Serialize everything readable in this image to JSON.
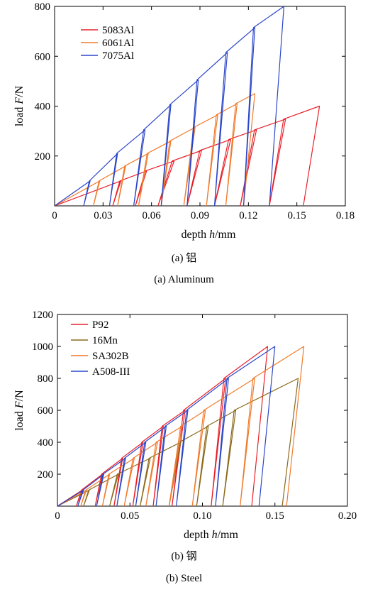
{
  "chart_data": [
    {
      "type": "line",
      "caption_cn": "(a) 铝",
      "caption_en": "(a) Aluminum",
      "xlabel_prefix": "depth ",
      "xlabel_var": "h",
      "xlabel_suffix": "/mm",
      "ylabel_prefix": "load ",
      "ylabel_var": "F",
      "ylabel_suffix": "/N",
      "xlim": [
        0,
        0.18
      ],
      "ylim": [
        0,
        800
      ],
      "xticks": [
        0,
        0.03,
        0.06,
        0.09,
        0.12,
        0.15,
        0.18
      ],
      "xticklabels": [
        "0",
        "0.03",
        "0.06",
        "0.09",
        "0.12",
        "0.15",
        "0.18"
      ],
      "yticks": [
        200,
        400,
        600,
        800
      ],
      "yticklabels": [
        "200",
        "400",
        "600",
        "800"
      ],
      "legend_position": "top-left",
      "series": [
        {
          "name": "5083Al",
          "color": "#e8202a",
          "loading_slope": 2440,
          "cycles": [
            {
              "peak_x": 0.041,
              "peak_y": 100,
              "end_x": 0.036
            },
            {
              "peak_x": 0.057,
              "peak_y": 140,
              "end_x": 0.05
            },
            {
              "peak_x": 0.074,
              "peak_y": 180,
              "end_x": 0.064
            },
            {
              "peak_x": 0.091,
              "peak_y": 222,
              "end_x": 0.082
            },
            {
              "peak_x": 0.109,
              "peak_y": 266,
              "end_x": 0.099
            },
            {
              "peak_x": 0.125,
              "peak_y": 305,
              "end_x": 0.115
            },
            {
              "peak_x": 0.143,
              "peak_y": 348,
              "end_x": 0.133
            },
            {
              "peak_x": 0.164,
              "peak_y": 400,
              "end_x": 0.154
            }
          ]
        },
        {
          "name": "6061Al",
          "color": "#f07b2c",
          "loading_slope": 3630,
          "cycles": [
            {
              "peak_x": 0.028,
              "peak_y": 100,
              "end_x": 0.024
            },
            {
              "peak_x": 0.044,
              "peak_y": 160,
              "end_x": 0.039
            },
            {
              "peak_x": 0.058,
              "peak_y": 210,
              "end_x": 0.052
            },
            {
              "peak_x": 0.072,
              "peak_y": 260,
              "end_x": 0.066
            },
            {
              "peak_x": 0.087,
              "peak_y": 315,
              "end_x": 0.08
            },
            {
              "peak_x": 0.101,
              "peak_y": 365,
              "end_x": 0.094
            },
            {
              "peak_x": 0.113,
              "peak_y": 410,
              "end_x": 0.106
            },
            {
              "peak_x": 0.124,
              "peak_y": 450,
              "end_x": 0.117
            }
          ]
        },
        {
          "name": "7075Al",
          "color": "#2b46c8",
          "loading_slope": 5640,
          "cycles": [
            {
              "peak_x": 0.022,
              "peak_y": 100,
              "end_x": 0.018
            },
            {
              "peak_x": 0.039,
              "peak_y": 210,
              "end_x": 0.034
            },
            {
              "peak_x": 0.056,
              "peak_y": 305,
              "end_x": 0.049
            },
            {
              "peak_x": 0.072,
              "peak_y": 405,
              "end_x": 0.066
            },
            {
              "peak_x": 0.089,
              "peak_y": 505,
              "end_x": 0.082
            },
            {
              "peak_x": 0.107,
              "peak_y": 615,
              "end_x": 0.099
            },
            {
              "peak_x": 0.124,
              "peak_y": 715,
              "end_x": 0.117
            },
            {
              "peak_x": 0.142,
              "peak_y": 800,
              "end_x": 0.133
            }
          ]
        }
      ]
    },
    {
      "type": "line",
      "caption_cn": "(b) 钢",
      "caption_en": "(b) Steel",
      "xlabel_prefix": "depth ",
      "xlabel_var": "h",
      "xlabel_suffix": "/mm",
      "ylabel_prefix": "load ",
      "ylabel_var": "F",
      "ylabel_suffix": "/N",
      "xlim": [
        0,
        0.2
      ],
      "ylim": [
        0,
        1200
      ],
      "xticks": [
        0,
        0.05,
        0.1,
        0.15,
        0.2
      ],
      "xticklabels": [
        "0",
        "0.05",
        "0.10",
        "0.15",
        "0.20"
      ],
      "yticks": [
        200,
        400,
        600,
        800,
        1000,
        1200
      ],
      "yticklabels": [
        "200",
        "400",
        "600",
        "800",
        "1000",
        "1200"
      ],
      "legend_position": "top-left",
      "series": [
        {
          "name": "P92",
          "color": "#e8202a",
          "loading_slope": 6900,
          "cycles": [
            {
              "peak_x": 0.017,
              "peak_y": 100,
              "end_x": 0.013
            },
            {
              "peak_x": 0.031,
              "peak_y": 200,
              "end_x": 0.026
            },
            {
              "peak_x": 0.045,
              "peak_y": 300,
              "end_x": 0.039
            },
            {
              "peak_x": 0.059,
              "peak_y": 400,
              "end_x": 0.052
            },
            {
              "peak_x": 0.073,
              "peak_y": 500,
              "end_x": 0.066
            },
            {
              "peak_x": 0.088,
              "peak_y": 600,
              "end_x": 0.079
            },
            {
              "peak_x": 0.116,
              "peak_y": 800,
              "end_x": 0.106
            },
            {
              "peak_x": 0.145,
              "peak_y": 1000,
              "end_x": 0.134
            }
          ]
        },
        {
          "name": "16Mn",
          "color": "#8b6a1a",
          "loading_slope": 4800,
          "cycles": [
            {
              "peak_x": 0.022,
              "peak_y": 100,
              "end_x": 0.018
            },
            {
              "peak_x": 0.042,
              "peak_y": 200,
              "end_x": 0.036
            },
            {
              "peak_x": 0.064,
              "peak_y": 300,
              "end_x": 0.057
            },
            {
              "peak_x": 0.085,
              "peak_y": 400,
              "end_x": 0.077
            },
            {
              "peak_x": 0.104,
              "peak_y": 500,
              "end_x": 0.096
            },
            {
              "peak_x": 0.123,
              "peak_y": 600,
              "end_x": 0.114
            },
            {
              "peak_x": 0.166,
              "peak_y": 800,
              "end_x": 0.155
            }
          ]
        },
        {
          "name": "SA302B",
          "color": "#f07b2c",
          "loading_slope": 5900,
          "cycles": [
            {
              "peak_x": 0.02,
              "peak_y": 100,
              "end_x": 0.016
            },
            {
              "peak_x": 0.036,
              "peak_y": 200,
              "end_x": 0.031
            },
            {
              "peak_x": 0.053,
              "peak_y": 300,
              "end_x": 0.046
            },
            {
              "peak_x": 0.069,
              "peak_y": 400,
              "end_x": 0.061
            },
            {
              "peak_x": 0.086,
              "peak_y": 500,
              "end_x": 0.077
            },
            {
              "peak_x": 0.102,
              "peak_y": 600,
              "end_x": 0.093
            },
            {
              "peak_x": 0.136,
              "peak_y": 800,
              "end_x": 0.126
            },
            {
              "peak_x": 0.17,
              "peak_y": 1000,
              "end_x": 0.158
            }
          ]
        },
        {
          "name": "A508-III",
          "color": "#2b46c8",
          "loading_slope": 6700,
          "cycles": [
            {
              "peak_x": 0.018,
              "peak_y": 100,
              "end_x": 0.014
            },
            {
              "peak_x": 0.032,
              "peak_y": 200,
              "end_x": 0.027
            },
            {
              "peak_x": 0.047,
              "peak_y": 300,
              "end_x": 0.041
            },
            {
              "peak_x": 0.061,
              "peak_y": 400,
              "end_x": 0.054
            },
            {
              "peak_x": 0.075,
              "peak_y": 500,
              "end_x": 0.068
            },
            {
              "peak_x": 0.09,
              "peak_y": 600,
              "end_x": 0.082
            },
            {
              "peak_x": 0.118,
              "peak_y": 800,
              "end_x": 0.109
            },
            {
              "peak_x": 0.15,
              "peak_y": 1000,
              "end_x": 0.139
            }
          ]
        }
      ]
    }
  ]
}
